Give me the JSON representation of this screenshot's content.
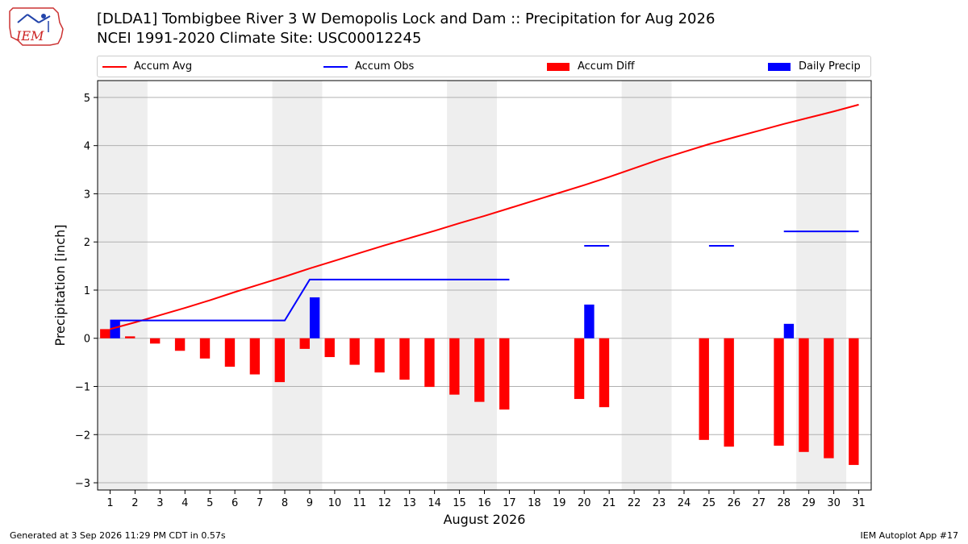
{
  "title_line1": "[DLDA1] Tombigbee River 3 W Demopolis Lock and Dam :: Precipitation for Aug 2026",
  "title_line2": "NCEI 1991-2020 Climate Site: USC00012245",
  "footer_left": "Generated at 3 Sep 2026 11:29 PM CDT in 0.57s",
  "footer_right": "IEM Autoplot App #17",
  "logo_text": "IEM",
  "colors": {
    "accum_avg": "#ff0000",
    "accum_obs": "#0000ff",
    "accum_diff": "#ff0000",
    "daily_precip": "#0000ff",
    "weekend_band": "#eeeeee",
    "grid": "#b0b0b0"
  },
  "legend": [
    {
      "label": "Accum Avg",
      "kind": "line",
      "color": "#ff0000"
    },
    {
      "label": "Accum Obs",
      "kind": "line",
      "color": "#0000ff"
    },
    {
      "label": "Accum Diff",
      "kind": "patch",
      "color": "#ff0000"
    },
    {
      "label": "Daily Precip",
      "kind": "patch",
      "color": "#0000ff"
    }
  ],
  "chart_data": {
    "type": "bar",
    "xlabel": "August 2026",
    "ylabel": "Precipitation [inch]",
    "xlim": [
      0.5,
      31.5
    ],
    "ylim": [
      -3.15,
      5.35
    ],
    "x_ticks": [
      1,
      2,
      3,
      4,
      5,
      6,
      7,
      8,
      9,
      10,
      11,
      12,
      13,
      14,
      15,
      16,
      17,
      18,
      19,
      20,
      21,
      22,
      23,
      24,
      25,
      26,
      27,
      28,
      29,
      30,
      31
    ],
    "y_ticks": [
      -3,
      -2,
      -1,
      0,
      1,
      2,
      3,
      4,
      5
    ],
    "y_tick_labels": [
      "−3",
      "−2",
      "−1",
      "0",
      "1",
      "2",
      "3",
      "4",
      "5"
    ],
    "grid": "horizontal",
    "legend_position": "top",
    "weekend_bands": [
      [
        1,
        2
      ],
      [
        8,
        9
      ],
      [
        15,
        16
      ],
      [
        22,
        23
      ],
      [
        29,
        30
      ]
    ],
    "series": [
      {
        "name": "Accum Avg",
        "kind": "line",
        "x": [
          1,
          2,
          3,
          4,
          5,
          6,
          7,
          8,
          9,
          10,
          11,
          12,
          13,
          14,
          15,
          16,
          17,
          18,
          19,
          20,
          21,
          22,
          23,
          24,
          25,
          26,
          27,
          28,
          29,
          30,
          31
        ],
        "y": [
          0.19,
          0.33,
          0.48,
          0.63,
          0.79,
          0.96,
          1.12,
          1.28,
          1.45,
          1.61,
          1.77,
          1.93,
          2.08,
          2.23,
          2.39,
          2.54,
          2.7,
          2.86,
          3.02,
          3.18,
          3.35,
          3.53,
          3.71,
          3.87,
          4.03,
          4.17,
          4.31,
          4.45,
          4.58,
          4.71,
          4.85
        ]
      },
      {
        "name": "Accum Obs",
        "kind": "line",
        "segments": [
          {
            "x": [
              1,
              2,
              3,
              4,
              5,
              6,
              7,
              8,
              9,
              10,
              11,
              12,
              13,
              14,
              15,
              16,
              17
            ],
            "y": [
              0.37,
              0.37,
              0.37,
              0.37,
              0.37,
              0.37,
              0.37,
              0.37,
              1.22,
              1.22,
              1.22,
              1.22,
              1.22,
              1.22,
              1.22,
              1.22,
              1.22
            ]
          },
          {
            "x": [
              20,
              21
            ],
            "y": [
              1.92,
              1.92
            ]
          },
          {
            "x": [
              25,
              26
            ],
            "y": [
              1.92,
              1.92
            ]
          },
          {
            "x": [
              28,
              29,
              30,
              31
            ],
            "y": [
              2.22,
              2.22,
              2.22,
              2.22
            ]
          }
        ]
      },
      {
        "name": "Accum Diff",
        "kind": "bar",
        "x": [
          1,
          2,
          3,
          4,
          5,
          6,
          7,
          8,
          9,
          10,
          11,
          12,
          13,
          14,
          15,
          16,
          17,
          20,
          21,
          25,
          26,
          28,
          29,
          30,
          31
        ],
        "values": [
          0.19,
          0.04,
          -0.11,
          -0.26,
          -0.42,
          -0.59,
          -0.75,
          -0.91,
          -0.22,
          -0.39,
          -0.55,
          -0.71,
          -0.86,
          -1.01,
          -1.17,
          -1.32,
          -1.48,
          -1.26,
          -1.43,
          -2.11,
          -2.25,
          -2.23,
          -2.36,
          -2.49,
          -2.63
        ]
      },
      {
        "name": "Daily Precip",
        "kind": "bar",
        "x": [
          1,
          9,
          20,
          28
        ],
        "values": [
          0.37,
          0.85,
          0.7,
          0.3
        ]
      }
    ]
  }
}
